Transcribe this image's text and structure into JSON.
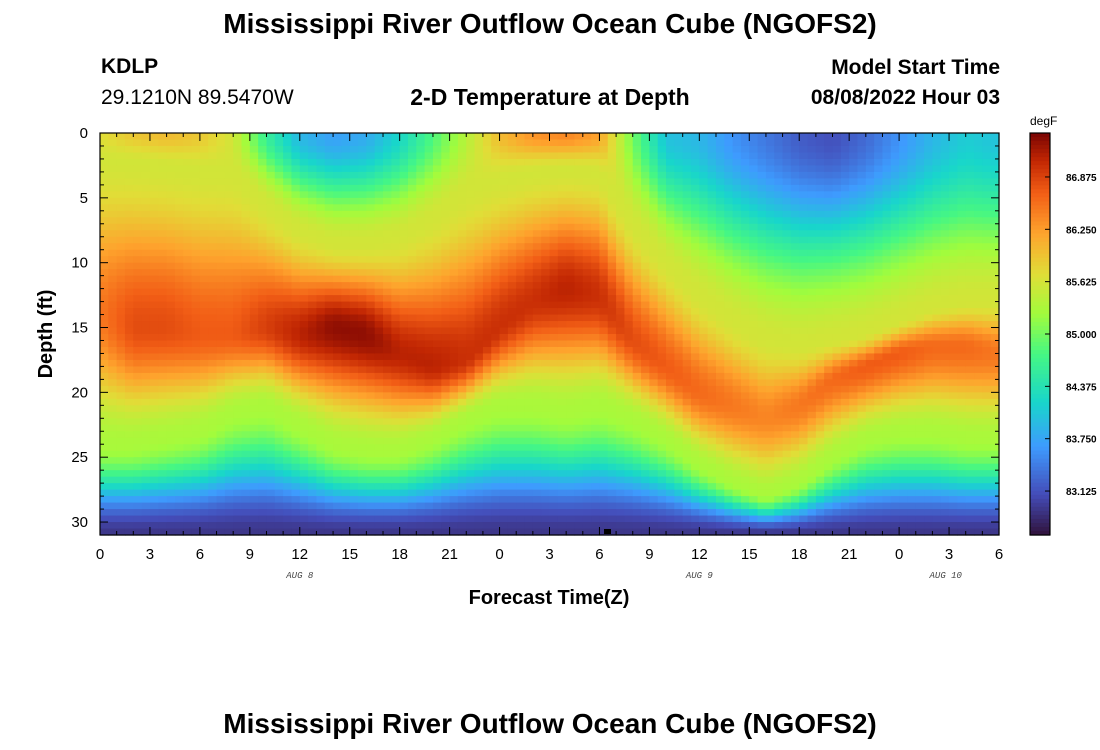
{
  "header": {
    "title": "Mississippi River Outflow Ocean Cube (NGOFS2)",
    "station_id": "KDLP",
    "coords": "29.1210N  89.5470W",
    "subtitle": "2-D Temperature at Depth",
    "start_label": "Model Start Time",
    "start_value": "08/08/2022 Hour 03"
  },
  "footer": {
    "title": "Mississippi River Outflow Ocean Cube (NGOFS2)"
  },
  "chart_data": {
    "type": "heatmap",
    "title": "2-D Temperature at Depth",
    "xlabel": "Forecast Time(Z)",
    "ylabel": "Depth (ft)",
    "x_hours_range": [
      0,
      54
    ],
    "x_ticks": [
      {
        "h": 0,
        "label": "0"
      },
      {
        "h": 3,
        "label": "3"
      },
      {
        "h": 6,
        "label": "6"
      },
      {
        "h": 9,
        "label": "9"
      },
      {
        "h": 12,
        "label": "12"
      },
      {
        "h": 15,
        "label": "15"
      },
      {
        "h": 18,
        "label": "18"
      },
      {
        "h": 21,
        "label": "21"
      },
      {
        "h": 24,
        "label": "0"
      },
      {
        "h": 27,
        "label": "3"
      },
      {
        "h": 30,
        "label": "6"
      },
      {
        "h": 33,
        "label": "9"
      },
      {
        "h": 36,
        "label": "12"
      },
      {
        "h": 39,
        "label": "15"
      },
      {
        "h": 42,
        "label": "18"
      },
      {
        "h": 45,
        "label": "21"
      },
      {
        "h": 48,
        "label": "0"
      },
      {
        "h": 51,
        "label": "3"
      },
      {
        "h": 54,
        "label": "6"
      }
    ],
    "date_labels": [
      {
        "h": 12,
        "label": "AUG 8"
      },
      {
        "h": 36,
        "label": "AUG 9"
      },
      {
        "h": 50.8,
        "label": "AUG 10"
      }
    ],
    "y_range": [
      0,
      31
    ],
    "y_ticks": [
      0,
      5,
      10,
      15,
      20,
      25,
      30
    ],
    "colorbar": {
      "unit": "degF",
      "min": 82.6,
      "max": 87.4,
      "labels": [
        "86.875",
        "86.250",
        "85.625",
        "85.000",
        "84.375",
        "83.750",
        "83.125"
      ]
    },
    "field_model": {
      "description": "Temperature (degF) profile bands by depth, estimated from the color field",
      "hours": [
        0,
        2,
        4,
        6,
        8,
        10,
        12,
        14,
        16,
        18,
        20,
        22,
        24,
        26,
        28,
        30,
        32,
        34,
        36,
        38,
        40,
        42,
        44,
        46,
        48,
        50,
        52,
        54
      ],
      "surface_temp": [
        85.7,
        85.9,
        86.0,
        85.9,
        85.6,
        84.6,
        83.9,
        83.7,
        83.8,
        84.2,
        84.8,
        85.4,
        86.0,
        86.3,
        86.4,
        86.2,
        85.0,
        84.0,
        83.9,
        83.6,
        83.4,
        83.2,
        83.1,
        83.3,
        83.6,
        83.9,
        84.1,
        84.0
      ],
      "upper_depth": [
        2.0,
        2.2,
        2.5,
        2.8,
        3.0,
        5.5,
        7.5,
        8.5,
        8.5,
        8.0,
        6.5,
        4.5,
        3.5,
        3.0,
        2.8,
        3.0,
        7.0,
        10.0,
        12.5,
        14.5,
        16.0,
        16.5,
        16.0,
        15.5,
        14.5,
        13.5,
        13.0,
        13.0
      ],
      "core_temp": [
        86.5,
        86.8,
        86.8,
        86.7,
        86.7,
        86.9,
        87.1,
        87.3,
        87.3,
        87.1,
        87.1,
        87.0,
        87.0,
        87.0,
        87.1,
        87.0,
        86.8,
        86.7,
        86.6,
        86.5,
        86.4,
        86.5,
        86.6,
        86.7,
        86.7,
        86.6,
        86.6,
        86.5
      ],
      "core_depth": [
        14.0,
        15.0,
        15.0,
        15.5,
        15.5,
        15.0,
        15.5,
        15.0,
        15.5,
        17.0,
        18.0,
        17.5,
        15.0,
        13.0,
        12.0,
        12.5,
        16.0,
        18.0,
        20.0,
        21.0,
        22.0,
        21.0,
        19.0,
        18.0,
        17.0,
        16.5,
        16.5,
        17.0
      ],
      "lower_depth": [
        24.0,
        24.0,
        23.5,
        23.0,
        21.5,
        21.0,
        22.5,
        24.0,
        24.5,
        24.5,
        23.5,
        22.0,
        21.0,
        21.0,
        21.5,
        21.0,
        22.0,
        23.5,
        25.5,
        27.0,
        28.0,
        27.0,
        25.0,
        23.5,
        23.0,
        23.0,
        23.5,
        23.5
      ],
      "bottom_temp": 82.9
    }
  }
}
